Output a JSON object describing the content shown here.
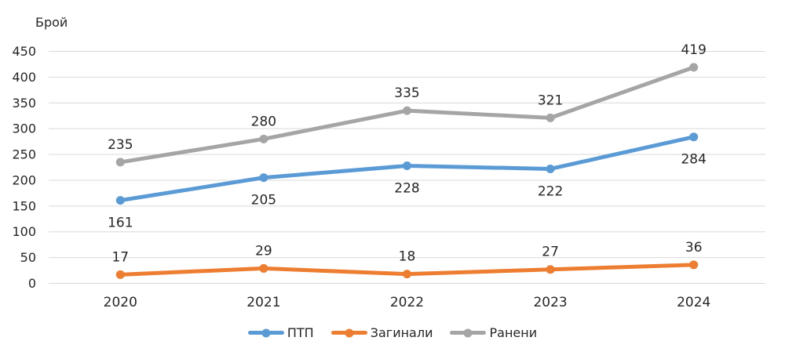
{
  "chart_data": {
    "type": "line",
    "title": "",
    "ylabel": "Брой",
    "xlabel": "",
    "categories": [
      "2020",
      "2021",
      "2022",
      "2023",
      "2024"
    ],
    "series": [
      {
        "name": "ПТП",
        "color": "#5B9BD5",
        "values": [
          161,
          205,
          228,
          222,
          284
        ],
        "label_position": "below"
      },
      {
        "name": "Загинали",
        "color": "#ED7D31",
        "values": [
          17,
          29,
          18,
          27,
          36
        ],
        "label_position": "above"
      },
      {
        "name": "Ранени",
        "color": "#A5A5A5",
        "values": [
          235,
          280,
          335,
          321,
          419
        ],
        "label_position": "above"
      }
    ],
    "ylim": [
      0,
      450
    ],
    "ytick_step": 50,
    "grid": "horizontal",
    "gridline_color": "#D9D9D9",
    "text_color": "#262626",
    "legend_position": "bottom"
  }
}
